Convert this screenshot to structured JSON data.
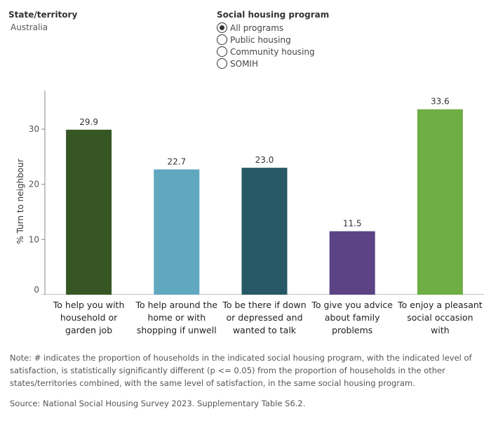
{
  "filters": {
    "state_label": "State/territory",
    "state_value": "Australia",
    "program_label": "Social housing program",
    "program_options": [
      {
        "label": "All programs",
        "selected": true
      },
      {
        "label": "Public housing",
        "selected": false
      },
      {
        "label": "Community housing",
        "selected": false
      },
      {
        "label": "SOMIH",
        "selected": false
      }
    ]
  },
  "chart_data": {
    "type": "bar",
    "ylabel": "% Turn to neighbour",
    "ylim": [
      0,
      37
    ],
    "yticks": [
      0,
      10,
      20,
      30
    ],
    "grid": false,
    "categories": [
      [
        "To help you with",
        "household or",
        "garden job"
      ],
      [
        "To help around the",
        "home or with",
        "shopping if unwell"
      ],
      [
        "To be there if down",
        "or depressed and",
        "wanted to talk"
      ],
      [
        "To give you advice",
        "about family",
        "problems"
      ],
      [
        "To enjoy a pleasant",
        "social occasion with"
      ]
    ],
    "values": [
      29.9,
      22.7,
      23.0,
      11.5,
      33.6
    ],
    "value_labels": [
      "29.9",
      "22.7",
      "23.0",
      "11.5",
      "33.6"
    ],
    "colors": [
      "#365624",
      "#5fa8c0",
      "#275865",
      "#5b4386",
      "#6fad45"
    ]
  },
  "note": "Note: # indicates the proportion of households in the indicated social housing program, with the indicated level of satisfaction, is statistically significantly different (p <= 0.05) from the proportion of households in the other states/territories combined, with the same level of satisfaction, in the same social housing program.",
  "source": "Source: National Social Housing Survey 2023. Supplementary Table S6.2."
}
